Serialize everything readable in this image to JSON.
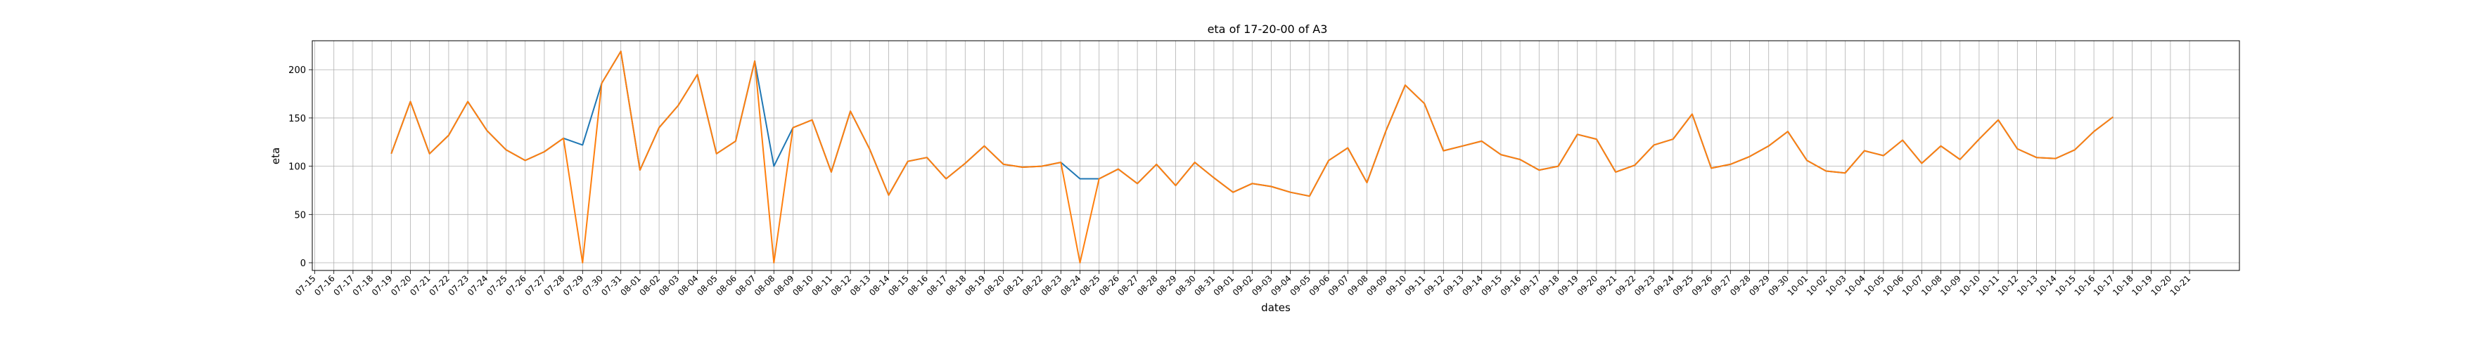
{
  "chart_data": {
    "type": "line",
    "title": "eta of 17-20-00 of A3",
    "xlabel": "dates",
    "ylabel": "eta",
    "ylim": [
      -8,
      230
    ],
    "yticks": [
      0,
      50,
      100,
      150,
      200
    ],
    "grid": true,
    "x_ticks": [
      "07-15",
      "07-16",
      "07-17",
      "07-18",
      "07-19",
      "07-20",
      "07-21",
      "07-22",
      "07-23",
      "07-24",
      "07-25",
      "07-26",
      "07-27",
      "07-28",
      "07-29",
      "07-30",
      "07-31",
      "08-01",
      "08-02",
      "08-03",
      "08-04",
      "08-05",
      "08-06",
      "08-07",
      "08-08",
      "08-09",
      "08-10",
      "08-11",
      "08-12",
      "08-13",
      "08-14",
      "08-15",
      "08-16",
      "08-17",
      "08-18",
      "08-19",
      "08-20",
      "08-21",
      "08-22",
      "08-23",
      "08-24",
      "08-25",
      "08-26",
      "08-27",
      "08-28",
      "08-29",
      "08-30",
      "08-31",
      "09-01",
      "09-02",
      "09-03",
      "09-04",
      "09-05",
      "09-06",
      "09-07",
      "09-08",
      "09-09",
      "09-10",
      "09-11",
      "09-12",
      "09-13",
      "09-14",
      "09-15",
      "09-16",
      "09-17",
      "09-18",
      "09-19",
      "09-20",
      "09-21",
      "09-22",
      "09-23",
      "09-24",
      "09-25",
      "09-26",
      "09-27",
      "09-28",
      "09-29",
      "09-30",
      "10-01",
      "10-02",
      "10-03",
      "10-04",
      "10-05",
      "10-06",
      "10-07",
      "10-08",
      "10-09",
      "10-10",
      "10-11",
      "10-12",
      "10-13",
      "10-14",
      "10-15",
      "10-16",
      "10-17",
      "10-18",
      "10-19",
      "10-20",
      "10-21"
    ],
    "series": [
      {
        "color": "#1f77b4",
        "x": [
          "07-19",
          "07-20",
          "07-21",
          "07-22",
          "07-23",
          "07-24",
          "07-25",
          "07-26",
          "07-27",
          "07-28",
          "07-29",
          "07-30",
          "07-31",
          "08-01",
          "08-02",
          "08-03",
          "08-04",
          "08-05",
          "08-06",
          "08-07",
          "08-08",
          "08-09",
          "08-10",
          "08-11",
          "08-12",
          "08-13",
          "08-14",
          "08-15",
          "08-16",
          "08-17",
          "08-18",
          "08-19",
          "08-20",
          "08-21",
          "08-22",
          "08-23",
          "08-24",
          "08-25",
          "08-26",
          "08-27",
          "08-28",
          "08-29",
          "08-30",
          "08-31",
          "09-01",
          "09-02",
          "09-03",
          "09-04",
          "09-05",
          "09-06",
          "09-07",
          "09-08",
          "09-09",
          "09-10",
          "09-11",
          "09-12",
          "09-13",
          "09-14",
          "09-15",
          "09-16",
          "09-17",
          "09-18",
          "09-19",
          "09-20",
          "09-21",
          "09-22",
          "09-23",
          "09-24",
          "09-25",
          "09-26",
          "09-27",
          "09-28",
          "09-29",
          "09-30",
          "10-01",
          "10-02",
          "10-03",
          "10-04",
          "10-05",
          "10-06",
          "10-07",
          "10-08",
          "10-09",
          "10-10",
          "10-11",
          "10-12",
          "10-13",
          "10-14",
          "10-15",
          "10-16",
          "10-17"
        ],
        "y": [
          113,
          167,
          113,
          132,
          167,
          137,
          117,
          106,
          115,
          129,
          122,
          186,
          219,
          96,
          140,
          163,
          195,
          113,
          126,
          209,
          100,
          140,
          148,
          94,
          157,
          118,
          70,
          105,
          109,
          87,
          103,
          121,
          102,
          99,
          100,
          104,
          87,
          87,
          97,
          82,
          102,
          80,
          104,
          88,
          73,
          82,
          79,
          73,
          69,
          106,
          119,
          83,
          137,
          184,
          165,
          116,
          121,
          126,
          112,
          107,
          96,
          100,
          133,
          128,
          94,
          101,
          122,
          128,
          154,
          98,
          102,
          110,
          121,
          136,
          106,
          95,
          93,
          116,
          111,
          127,
          103,
          121,
          107,
          128,
          148,
          118,
          109,
          108,
          117,
          136,
          151
        ]
      },
      {
        "color": "#ff7f0e",
        "x": [
          "07-19",
          "07-20",
          "07-21",
          "07-22",
          "07-23",
          "07-24",
          "07-25",
          "07-26",
          "07-27",
          "07-28",
          "07-29",
          "07-30",
          "07-31",
          "08-01",
          "08-02",
          "08-03",
          "08-04",
          "08-05",
          "08-06",
          "08-07",
          "08-08",
          "08-09",
          "08-10",
          "08-11",
          "08-12",
          "08-13",
          "08-14",
          "08-15",
          "08-16",
          "08-17",
          "08-18",
          "08-19",
          "08-20",
          "08-21",
          "08-22",
          "08-23",
          "08-24",
          "08-25",
          "08-26",
          "08-27",
          "08-28",
          "08-29",
          "08-30",
          "08-31",
          "09-01",
          "09-02",
          "09-03",
          "09-04",
          "09-05",
          "09-06",
          "09-07",
          "09-08",
          "09-09",
          "09-10",
          "09-11",
          "09-12",
          "09-13",
          "09-14",
          "09-15",
          "09-16",
          "09-17",
          "09-18",
          "09-19",
          "09-20",
          "09-21",
          "09-22",
          "09-23",
          "09-24",
          "09-25",
          "09-26",
          "09-27",
          "09-28",
          "09-29",
          "09-30",
          "10-01",
          "10-02",
          "10-03",
          "10-04",
          "10-05",
          "10-06",
          "10-07",
          "10-08",
          "10-09",
          "10-10",
          "10-11",
          "10-12",
          "10-13",
          "10-14",
          "10-15",
          "10-16",
          "10-17"
        ],
        "y": [
          113,
          167,
          113,
          132,
          167,
          137,
          117,
          106,
          115,
          129,
          0,
          186,
          219,
          96,
          140,
          163,
          195,
          113,
          126,
          209,
          0,
          140,
          148,
          94,
          157,
          118,
          70,
          105,
          109,
          87,
          103,
          121,
          102,
          99,
          100,
          104,
          0,
          87,
          97,
          82,
          102,
          80,
          104,
          88,
          73,
          82,
          79,
          73,
          69,
          106,
          119,
          83,
          137,
          184,
          165,
          116,
          121,
          126,
          112,
          107,
          96,
          100,
          133,
          128,
          94,
          101,
          122,
          128,
          154,
          98,
          102,
          110,
          121,
          136,
          106,
          95,
          93,
          116,
          111,
          127,
          103,
          121,
          107,
          128,
          148,
          118,
          109,
          108,
          117,
          136,
          151
        ]
      }
    ]
  }
}
